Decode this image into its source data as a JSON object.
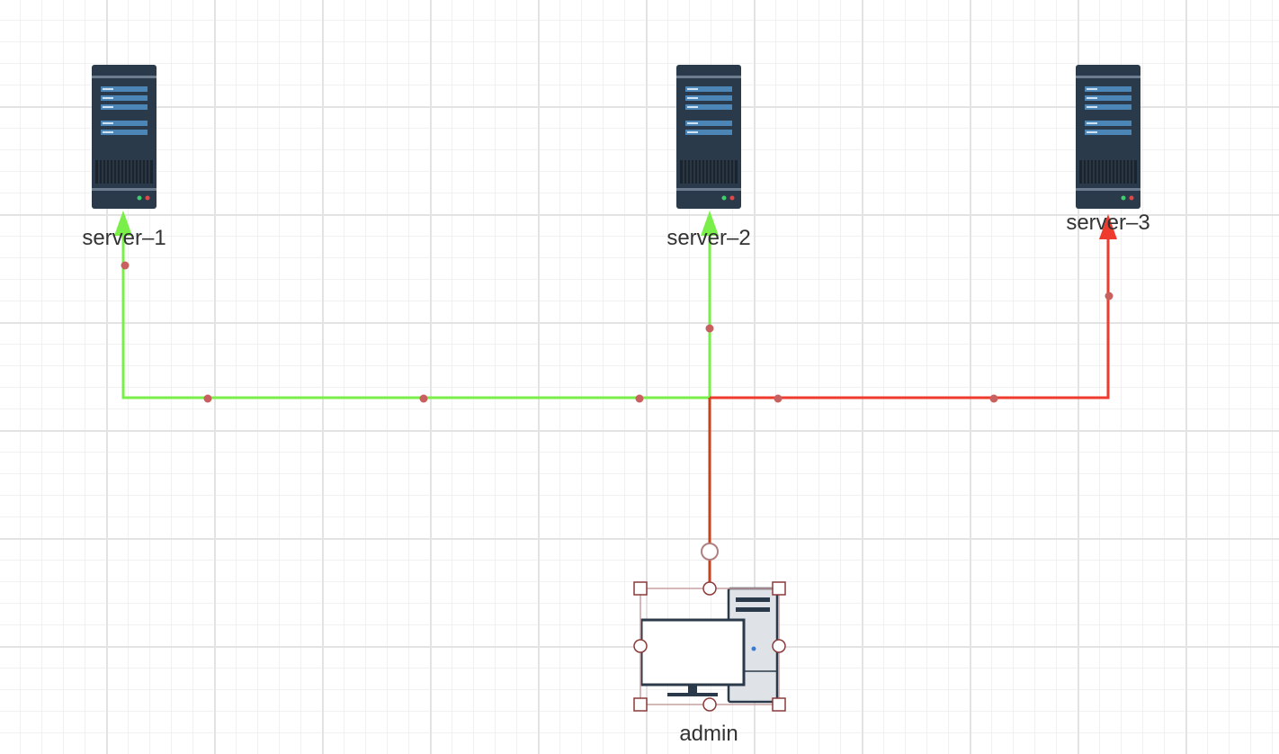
{
  "nodes": [
    {
      "id": "server-1",
      "label": "server–1",
      "icon": "server-tower-icon"
    },
    {
      "id": "server-2",
      "label": "server–2",
      "icon": "server-tower-icon"
    },
    {
      "id": "server-3",
      "label": "server–3",
      "icon": "server-tower-icon"
    },
    {
      "id": "admin",
      "label": "admin",
      "icon": "desktop-computer-icon",
      "selected": true
    }
  ],
  "edges": [
    {
      "from": "admin",
      "to": "server-1",
      "color": "#7aef4a"
    },
    {
      "from": "admin",
      "to": "server-2",
      "color": "#7aef4a"
    },
    {
      "from": "admin",
      "to": "server-3",
      "color": "#ee3b2d"
    }
  ],
  "colors": {
    "edge_green": "#7aef4a",
    "edge_red": "#ee3b2d",
    "edge_shared": "#c9421e",
    "waypoint": "#c96060",
    "selection": "#8b3a3a",
    "server_body": "#2b3a4a",
    "server_slot": "#4c86b6"
  }
}
